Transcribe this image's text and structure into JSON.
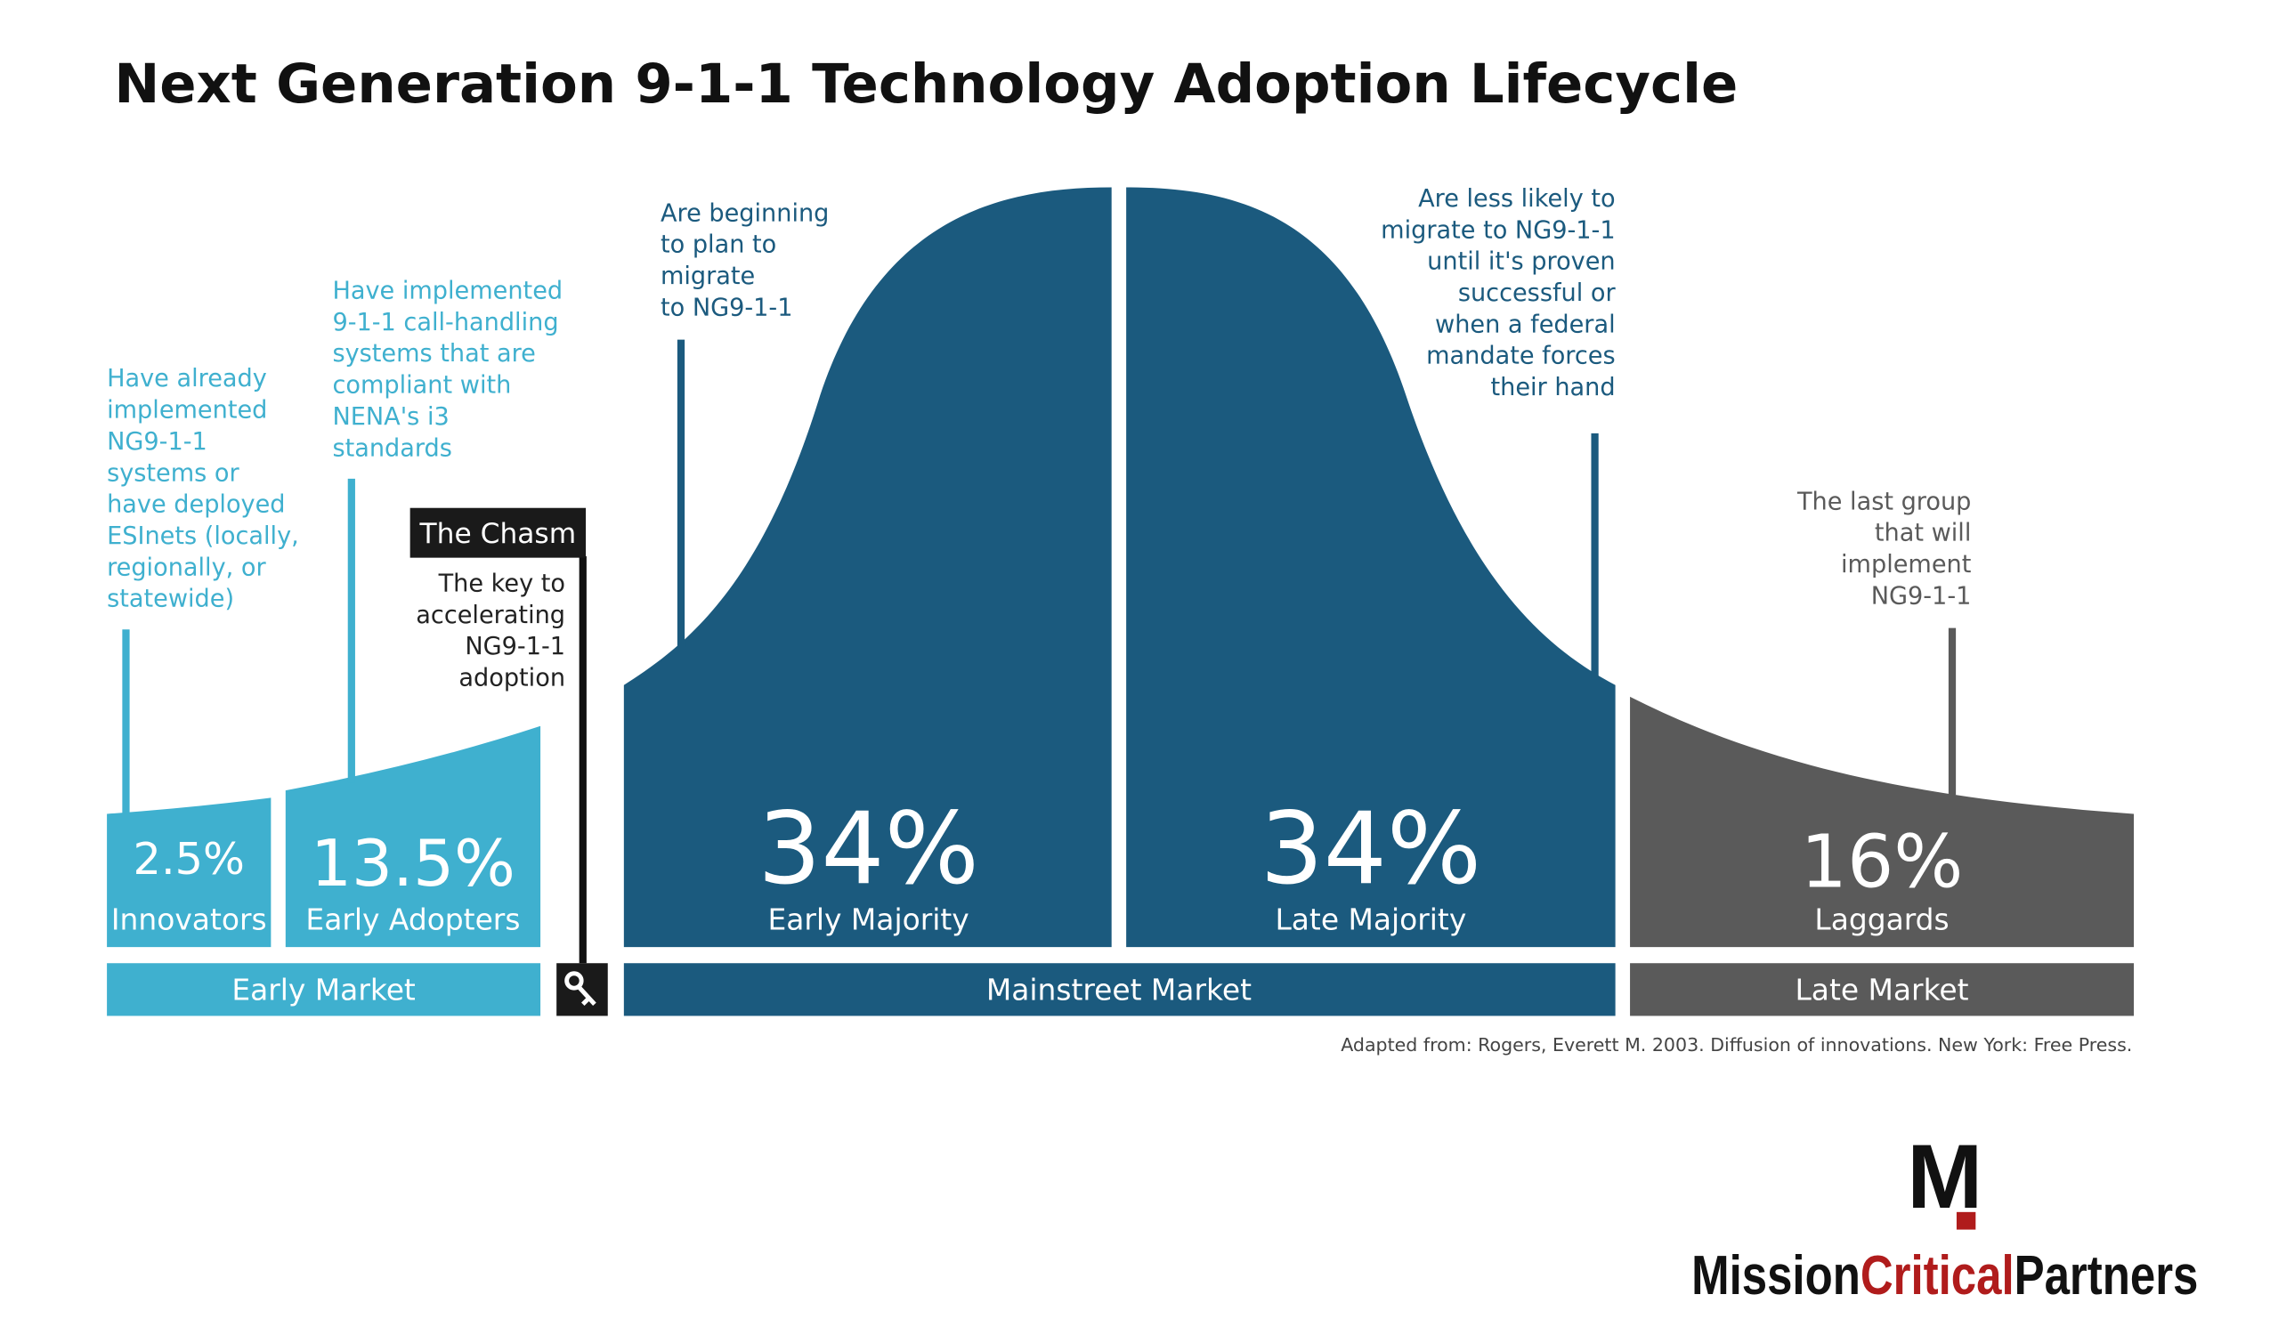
{
  "title": "Next Generation 9-1-1 Technology Adoption Lifecycle",
  "segments": [
    {
      "percent": "2.5%",
      "label": "Innovators",
      "note": [
        "Have already",
        "implemented",
        "NG9-1-1",
        "systems or",
        "have deployed",
        "ESInets (locally,",
        "regionally, or",
        "statewide)"
      ]
    },
    {
      "percent": "13.5%",
      "label": "Early Adopters",
      "note": [
        "Have implemented",
        "9-1-1 call-handling",
        "systems that are",
        "compliant with",
        "NENA's i3",
        "standards"
      ]
    },
    {
      "percent": "34%",
      "label": "Early Majority",
      "note": [
        "Are beginning",
        "to plan to",
        "migrate",
        "to NG9-1-1"
      ]
    },
    {
      "percent": "34%",
      "label": "Late Majority",
      "note": [
        "Are less likely to",
        "migrate to NG9-1-1",
        "until it's proven",
        "successful or",
        "when a federal",
        "mandate forces",
        "their hand"
      ]
    },
    {
      "percent": "16%",
      "label": "Laggards",
      "note": [
        "The last group",
        "that will",
        "implement",
        "NG9-1-1"
      ]
    }
  ],
  "chasm": {
    "title": "The Chasm",
    "note": [
      "The key to",
      "accelerating",
      "NG9-1-1",
      "adoption"
    ]
  },
  "markets": [
    "Early Market",
    "Mainstreet Market",
    "Late Market"
  ],
  "source": "Adapted from: Rogers, Everett M. 2003. Diffusion of innovations. New York: Free Press.",
  "logo": {
    "mark": "M",
    "name": [
      "Mission",
      "Critical",
      "Partners"
    ]
  }
}
